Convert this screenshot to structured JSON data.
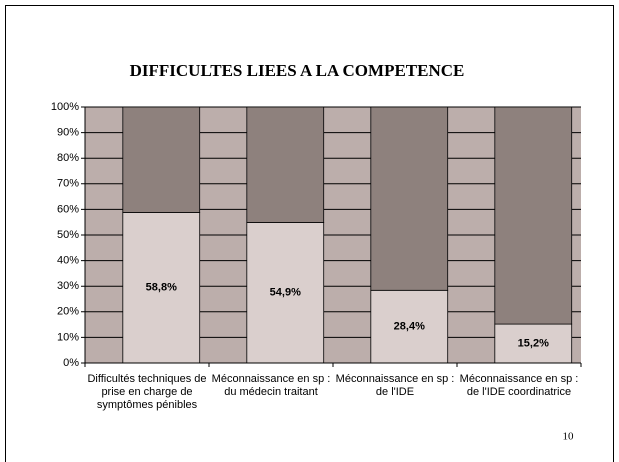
{
  "chart_data": {
    "type": "stacked_bar",
    "title": "DIFFICULTES LIEES A LA  COMPETENCE",
    "categories": [
      "Difficultés techniques de prise en charge de symptômes pénibles",
      "Méconnaissance en sp : du médecin traitant",
      "Méconnaissance en sp : de l'IDE",
      "Méconnaissance en sp : de l'IDE coordinatrice"
    ],
    "series": [
      {
        "color": "#dacfcd",
        "values": [
          58.8,
          54.9,
          28.4,
          15.2
        ],
        "value_labels": [
          "58,8%",
          "54,9%",
          "28,4%",
          "15,2%"
        ]
      },
      {
        "color": "#8e817d",
        "values": [
          41.2,
          45.1,
          71.6,
          84.8
        ]
      }
    ],
    "ylim": [
      0,
      100
    ],
    "yticks": [
      {
        "value": 0,
        "label": "0%"
      },
      {
        "value": 10,
        "label": "10%"
      },
      {
        "value": 20,
        "label": "20%"
      },
      {
        "value": 30,
        "label": "30%"
      },
      {
        "value": 40,
        "label": "40%"
      },
      {
        "value": 50,
        "label": "50%"
      },
      {
        "value": 60,
        "label": "60%"
      },
      {
        "value": 70,
        "label": "70%"
      },
      {
        "value": 80,
        "label": "80%"
      },
      {
        "value": 90,
        "label": "90%"
      },
      {
        "value": 100,
        "label": "100%"
      }
    ],
    "grid": true,
    "plot_background": "#bcaeab",
    "page_number": "10"
  }
}
